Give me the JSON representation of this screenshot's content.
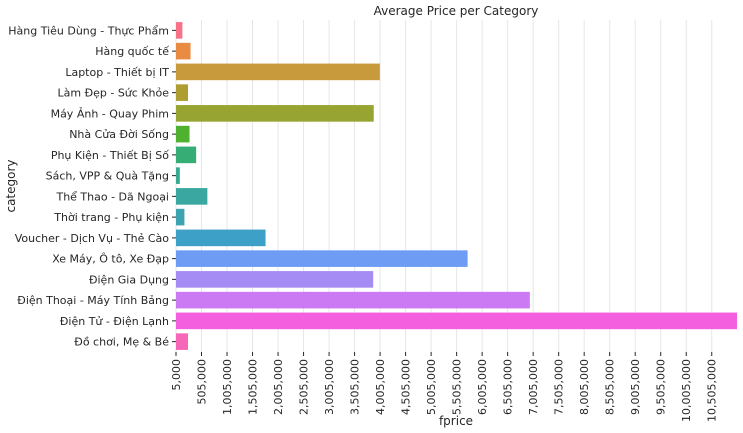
{
  "chart_data": {
    "type": "bar",
    "orientation": "horizontal",
    "title": "Average Price per Category",
    "xlabel": "fprice",
    "ylabel": "category",
    "xlim": [
      5000,
      11000000
    ],
    "x_ticks": [
      5000,
      505000,
      1005000,
      1505000,
      2005000,
      2505000,
      3005000,
      3505000,
      4005000,
      4505000,
      5005000,
      5505000,
      6005000,
      6505000,
      7005000,
      7505000,
      8005000,
      8505000,
      9005000,
      9505000,
      10005000,
      10505000
    ],
    "x_tick_labels": [
      "5,000",
      "505,000",
      "1,005,000",
      "1,505,000",
      "2,005,000",
      "2,505,000",
      "3,005,000",
      "3,505,000",
      "4,005,000",
      "4,505,000",
      "5,005,000",
      "5,505,000",
      "6,005,000",
      "6,505,000",
      "7,005,000",
      "7,505,000",
      "8,005,000",
      "8,505,000",
      "9,005,000",
      "9,505,000",
      "10,005,000",
      "10,505,000"
    ],
    "grid": true,
    "categories": [
      "Hàng Tiêu Dùng - Thực Phẩm",
      "Hàng quốc tế",
      "Laptop - Thiết bị IT",
      "Làm Đẹp - Sức Khỏe",
      "Máy Ảnh - Quay Phim",
      "Nhà Cửa Đời Sống",
      "Phụ Kiện - Thiết Bị Số",
      "Sách, VPP & Quà Tặng",
      "Thể Thao - Dã Ngoại",
      "Thời trang - Phụ kiện",
      "Voucher - Dịch Vụ - Thẻ Cào",
      "Xe Máy, Ô tô, Xe Đạp",
      "Điện Gia Dụng",
      "Điện Thoại - Máy Tính Bảng",
      "Điện Tử - Điện Lạnh",
      "Đồ chơi, Mẹ & Bé"
    ],
    "values": [
      130000,
      290000,
      4000000,
      240000,
      3880000,
      270000,
      400000,
      80000,
      620000,
      170000,
      1760000,
      5720000,
      3870000,
      6940000,
      11000000,
      240000
    ],
    "colors": [
      "#f77189",
      "#e98b42",
      "#c99a3b",
      "#ae9e31",
      "#97a431",
      "#50b131",
      "#36ad75",
      "#38aa8f",
      "#3aa7a0",
      "#3ba4b0",
      "#3da0c7",
      "#6e9bf4",
      "#a48cf4",
      "#cc7af4",
      "#f45fdf",
      "#f668b7"
    ]
  }
}
